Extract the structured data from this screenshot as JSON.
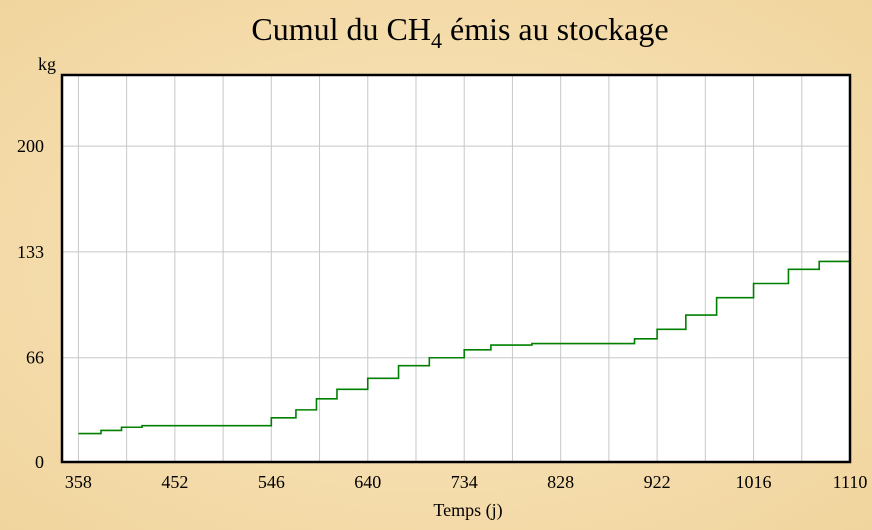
{
  "chart_data": {
    "type": "line",
    "title": [
      "Cumul du CH",
      "4",
      " émis au stockage"
    ],
    "ylabel": "kg",
    "xlabel": "Temps (j)",
    "x": [
      358,
      380,
      400,
      420,
      520,
      546,
      570,
      590,
      610,
      640,
      670,
      700,
      734,
      760,
      800,
      880,
      900,
      922,
      950,
      980,
      1016,
      1050,
      1080,
      1110
    ],
    "series": [
      {
        "color": "#008000",
        "values": [
          18,
          20,
          22,
          23,
          23,
          28,
          33,
          40,
          46,
          53,
          61,
          66,
          71,
          74,
          75,
          75,
          78,
          84,
          93,
          104,
          113,
          122,
          127,
          134
        ]
      }
    ],
    "xlim": [
      342,
      1110
    ],
    "xticks": [
      358,
      452,
      546,
      640,
      734,
      828,
      922,
      1016,
      1110
    ],
    "ylim": [
      0,
      245
    ],
    "yticks": [
      0,
      66,
      133,
      200
    ],
    "grid": true,
    "step": true
  }
}
